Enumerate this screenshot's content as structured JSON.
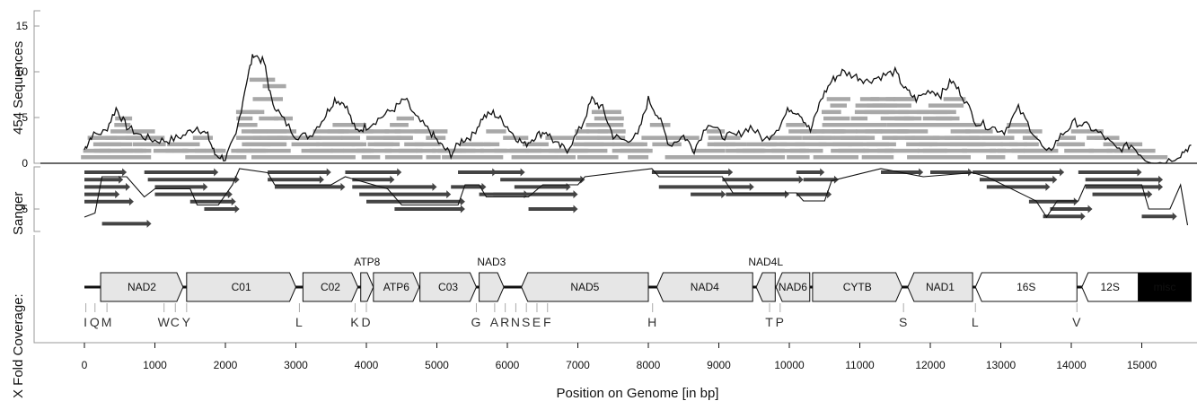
{
  "y_labels": {
    "coverage_454": "454 Sequences",
    "sanger": "Sanger",
    "overall": "X Fold Coverage:"
  },
  "x_axis": {
    "label": "Position on Genome [in bp]",
    "ticks": [
      0,
      1000,
      2000,
      3000,
      4000,
      5000,
      6000,
      7000,
      8000,
      9000,
      10000,
      11000,
      12000,
      13000,
      14000,
      15000
    ],
    "range": [
      0,
      15700
    ]
  },
  "coverage_454_ticks": [
    0,
    5,
    10,
    15
  ],
  "sanger_ticks": [
    5
  ],
  "genes": [
    {
      "name": "NAD2",
      "start": 230,
      "end": 1400,
      "dir": "fwd",
      "type": "protein"
    },
    {
      "name": "C01",
      "start": 1450,
      "end": 3000,
      "dir": "fwd",
      "type": "protein"
    },
    {
      "name": "C02",
      "start": 3100,
      "end": 3880,
      "dir": "fwd",
      "type": "protein"
    },
    {
      "name": "ATP8",
      "start": 3920,
      "end": 4100,
      "dir": "fwd",
      "type": "protein"
    },
    {
      "name": "ATP6",
      "start": 4100,
      "end": 4750,
      "dir": "fwd",
      "type": "protein"
    },
    {
      "name": "C03",
      "start": 4760,
      "end": 5560,
      "dir": "fwd",
      "type": "protein"
    },
    {
      "name": "NAD3",
      "start": 5600,
      "end": 5950,
      "dir": "fwd",
      "type": "protein"
    },
    {
      "name": "NAD5",
      "start": 6200,
      "end": 8000,
      "dir": "rev",
      "type": "protein"
    },
    {
      "name": "NAD4",
      "start": 8120,
      "end": 9480,
      "dir": "rev",
      "type": "protein"
    },
    {
      "name": "NAD4L",
      "start": 9530,
      "end": 9800,
      "dir": "rev",
      "type": "protein"
    },
    {
      "name": "NAD6",
      "start": 9810,
      "end": 10290,
      "dir": "rev",
      "type": "protein"
    },
    {
      "name": "CYTB",
      "start": 10330,
      "end": 11600,
      "dir": "fwd",
      "type": "protein"
    },
    {
      "name": "NAD1",
      "start": 11680,
      "end": 12600,
      "dir": "rev",
      "type": "protein"
    },
    {
      "name": "16S",
      "start": 12640,
      "end": 14080,
      "dir": "rev",
      "type": "rna"
    },
    {
      "name": "12S",
      "start": 14150,
      "end": 14950,
      "dir": "rev",
      "type": "rna"
    },
    {
      "name": "misc",
      "start": 14950,
      "end": 15700,
      "dir": "none",
      "type": "misc"
    }
  ],
  "gene_labels_above": [
    "ATP8",
    "NAD3",
    "NAD4L"
  ],
  "trnas": [
    {
      "label": "I",
      "pos": 20
    },
    {
      "label": "Q",
      "pos": 150
    },
    {
      "label": "M",
      "pos": 320
    },
    {
      "label": "W",
      "pos": 1130
    },
    {
      "label": "C",
      "pos": 1290
    },
    {
      "label": "Y",
      "pos": 1450
    },
    {
      "label": "L",
      "pos": 3050
    },
    {
      "label": "K",
      "pos": 3840
    },
    {
      "label": "D",
      "pos": 4000
    },
    {
      "label": "G",
      "pos": 5560
    },
    {
      "label": "A",
      "pos": 5820
    },
    {
      "label": "R",
      "pos": 5970
    },
    {
      "label": "N",
      "pos": 6120
    },
    {
      "label": "S",
      "pos": 6270
    },
    {
      "label": "E",
      "pos": 6420
    },
    {
      "label": "F",
      "pos": 6570
    },
    {
      "label": "H",
      "pos": 8060
    },
    {
      "label": "T",
      "pos": 9720
    },
    {
      "label": "P",
      "pos": 9870
    },
    {
      "label": "S",
      "pos": 11620
    },
    {
      "label": "L",
      "pos": 12640
    },
    {
      "label": "V",
      "pos": 14080
    }
  ],
  "colors": {
    "read_454": "#a8a8a8",
    "read_sanger": "#444444",
    "line": "#111111",
    "gene_fill": "#e6e6e6",
    "rna_fill": "#ffffff",
    "misc_fill": "#000000"
  }
}
